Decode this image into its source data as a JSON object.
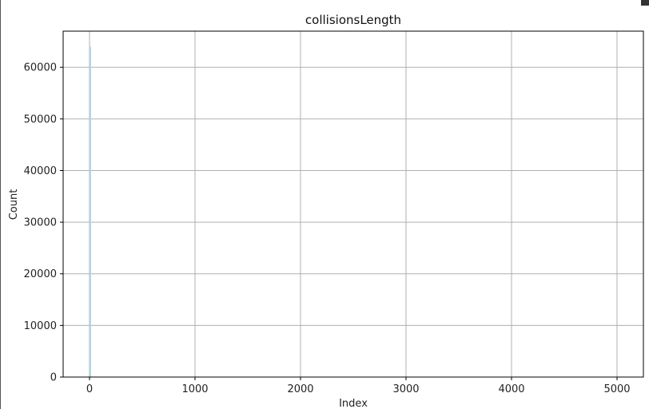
{
  "chart_data": {
    "type": "bar",
    "title": "collisionsLength",
    "xlabel": "Index",
    "ylabel": "Count",
    "xlim": [
      -250,
      5250
    ],
    "ylim": [
      0,
      67000
    ],
    "xticks": [
      0,
      1000,
      2000,
      3000,
      4000,
      5000
    ],
    "yticks": [
      0,
      10000,
      20000,
      30000,
      40000,
      50000,
      60000
    ],
    "grid": true,
    "bar_color": "#add8e6",
    "bars": [
      {
        "x": 0,
        "value": 64000
      },
      {
        "x": 2,
        "value": 180
      },
      {
        "x": 4,
        "value": 40
      }
    ]
  }
}
